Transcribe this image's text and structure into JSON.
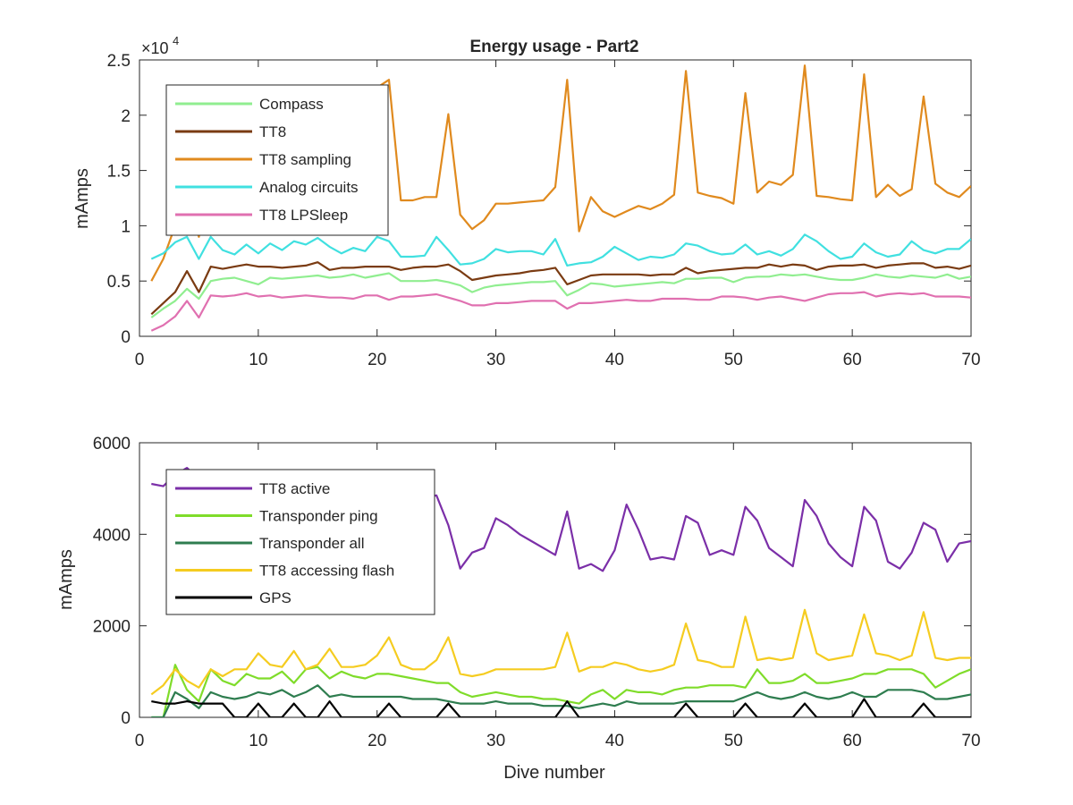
{
  "chart_data": [
    {
      "type": "line",
      "title": "Energy usage - Part2",
      "xlabel": "",
      "ylabel": "mAmps",
      "exponent_base": "×10",
      "exponent_power": "4",
      "xlim": [
        0,
        70
      ],
      "ylim": [
        0,
        25000
      ],
      "xticks": [
        0,
        10,
        20,
        30,
        40,
        50,
        60,
        70
      ],
      "xtick_labels": [
        "0",
        "10",
        "20",
        "30",
        "40",
        "50",
        "60",
        "70"
      ],
      "yticks": [
        0,
        5000,
        10000,
        15000,
        20000,
        25000
      ],
      "ytick_labels": [
        "0",
        "0.5",
        "1",
        "1.5",
        "2",
        "2.5"
      ],
      "grid": false,
      "legend_position": "top-left",
      "series": [
        {
          "name": "Compass",
          "color": "#90ee90",
          "values": [
            1700,
            2500,
            3200,
            4300,
            3400,
            5000,
            5200,
            5300,
            5000,
            4700,
            5300,
            5200,
            5300,
            5400,
            5500,
            5300,
            5400,
            5600,
            5300,
            5500,
            5700,
            5000,
            5000,
            5000,
            5100,
            4900,
            4600,
            4000,
            4400,
            4600,
            4700,
            4800,
            4900,
            4900,
            5000,
            3700,
            4200,
            4800,
            4700,
            4500,
            4600,
            4700,
            4800,
            4900,
            4800,
            5200,
            5200,
            5300,
            5300,
            4900,
            5300,
            5400,
            5400,
            5600,
            5500,
            5600,
            5400,
            5200,
            5100,
            5100,
            5300,
            5600,
            5400,
            5300,
            5500,
            5400,
            5300,
            5600,
            5200,
            5400
          ]
        },
        {
          "name": "TT8",
          "color": "#7a3b12",
          "values": [
            2000,
            3000,
            4000,
            5900,
            4000,
            6300,
            6100,
            6300,
            6500,
            6300,
            6300,
            6200,
            6300,
            6400,
            6700,
            6000,
            6200,
            6200,
            6300,
            6300,
            6300,
            6000,
            6200,
            6300,
            6300,
            6500,
            5900,
            5100,
            5300,
            5500,
            5600,
            5700,
            5900,
            6000,
            6200,
            4700,
            5100,
            5500,
            5600,
            5600,
            5600,
            5600,
            5500,
            5600,
            5600,
            6200,
            5700,
            5900,
            6000,
            6100,
            6200,
            6200,
            6500,
            6300,
            6500,
            6400,
            6000,
            6300,
            6400,
            6400,
            6500,
            6200,
            6400,
            6500,
            6600,
            6600,
            6200,
            6300,
            6100,
            6400
          ]
        },
        {
          "name": "TT8 sampling",
          "color": "#e08a1e",
          "values": [
            5000,
            7000,
            10000,
            12500,
            9000,
            13000,
            14000,
            16000,
            17000,
            18000,
            18000,
            18500,
            19000,
            19500,
            20000,
            20500,
            21000,
            21500,
            22000,
            22500,
            23200,
            12300,
            12300,
            12600,
            12600,
            20100,
            11000,
            9700,
            10500,
            12000,
            12000,
            12100,
            12200,
            12300,
            13500,
            23200,
            9500,
            12600,
            11300,
            10800,
            11300,
            11800,
            11500,
            12000,
            12800,
            24000,
            13000,
            12700,
            12500,
            12000,
            22000,
            13000,
            14000,
            13700,
            14600,
            24500,
            12700,
            12600,
            12400,
            12300,
            23700,
            12600,
            13700,
            12700,
            13300,
            21700,
            13800,
            13000,
            12600,
            13600
          ]
        },
        {
          "name": "Analog circuits",
          "color": "#40e0e0",
          "values": [
            7000,
            7500,
            8500,
            9000,
            7000,
            9000,
            7800,
            7400,
            8300,
            7500,
            8400,
            7800,
            8600,
            8300,
            8900,
            8100,
            7500,
            8000,
            7700,
            9000,
            8600,
            7200,
            7200,
            7300,
            9000,
            7800,
            6500,
            6600,
            7000,
            7900,
            7600,
            7700,
            7700,
            7400,
            8800,
            6400,
            6600,
            6700,
            7200,
            8100,
            7500,
            6900,
            7200,
            7100,
            7400,
            8400,
            8200,
            7700,
            7400,
            7500,
            8300,
            7400,
            7700,
            7300,
            7900,
            9200,
            8600,
            7700,
            7000,
            7200,
            8400,
            7600,
            7200,
            7400,
            8600,
            7800,
            7500,
            7900,
            7900,
            8800
          ]
        },
        {
          "name": "TT8 LPSleep",
          "color": "#e070b0",
          "values": [
            500,
            1000,
            1800,
            3200,
            1700,
            3700,
            3600,
            3700,
            3900,
            3600,
            3700,
            3500,
            3600,
            3700,
            3600,
            3500,
            3500,
            3400,
            3700,
            3700,
            3300,
            3600,
            3600,
            3700,
            3800,
            3500,
            3200,
            2800,
            2800,
            3000,
            3000,
            3100,
            3200,
            3200,
            3200,
            2500,
            3000,
            3000,
            3100,
            3200,
            3300,
            3200,
            3200,
            3400,
            3400,
            3400,
            3300,
            3300,
            3600,
            3600,
            3500,
            3300,
            3500,
            3600,
            3400,
            3200,
            3500,
            3800,
            3900,
            3900,
            4000,
            3600,
            3800,
            3900,
            3800,
            3900,
            3600,
            3600,
            3600,
            3500
          ]
        }
      ],
      "x": [
        1,
        2,
        3,
        4,
        5,
        6,
        7,
        8,
        9,
        10,
        11,
        12,
        13,
        14,
        15,
        16,
        17,
        18,
        19,
        20,
        21,
        22,
        23,
        24,
        25,
        26,
        27,
        28,
        29,
        30,
        31,
        32,
        33,
        34,
        35,
        36,
        37,
        38,
        39,
        40,
        41,
        42,
        43,
        44,
        45,
        46,
        47,
        48,
        49,
        50,
        51,
        52,
        53,
        54,
        55,
        56,
        57,
        58,
        59,
        60,
        61,
        62,
        63,
        64,
        65,
        66,
        67,
        68,
        69,
        70
      ]
    },
    {
      "type": "line",
      "title": "",
      "xlabel": "Dive number",
      "ylabel": "mAmps",
      "xlim": [
        0,
        70
      ],
      "ylim": [
        0,
        6000
      ],
      "xticks": [
        0,
        10,
        20,
        30,
        40,
        50,
        60,
        70
      ],
      "xtick_labels": [
        "0",
        "10",
        "20",
        "30",
        "40",
        "50",
        "60",
        "70"
      ],
      "yticks": [
        0,
        2000,
        4000,
        6000
      ],
      "ytick_labels": [
        "0",
        "2000",
        "4000",
        "6000"
      ],
      "grid": false,
      "legend_position": "top-left",
      "series": [
        {
          "name": "TT8 active",
          "color": "#7b2fa8",
          "values": [
            5100,
            5050,
            5300,
            5450,
            5200,
            5100,
            5050,
            5000,
            5000,
            4900,
            4950,
            4900,
            4850,
            4800,
            4900,
            4800,
            4900,
            4800,
            4850,
            4900,
            4850,
            4800,
            4850,
            4800,
            4850,
            4200,
            3250,
            3600,
            3700,
            4350,
            4200,
            4000,
            3850,
            3700,
            3550,
            4500,
            3250,
            3350,
            3200,
            3650,
            4650,
            4100,
            3450,
            3500,
            3450,
            4400,
            4250,
            3550,
            3650,
            3550,
            4600,
            4300,
            3700,
            3500,
            3300,
            4750,
            4400,
            3800,
            3500,
            3300,
            4600,
            4300,
            3400,
            3250,
            3600,
            4250,
            4100,
            3400,
            3800,
            3850
          ]
        },
        {
          "name": "Transponder ping",
          "color": "#7fdc2a",
          "values": [
            0,
            0,
            1150,
            600,
            350,
            1050,
            800,
            700,
            950,
            850,
            850,
            1000,
            750,
            1050,
            1100,
            850,
            1000,
            900,
            850,
            950,
            950,
            900,
            850,
            800,
            750,
            750,
            550,
            450,
            500,
            550,
            500,
            450,
            450,
            400,
            400,
            350,
            300,
            500,
            600,
            400,
            600,
            550,
            550,
            500,
            600,
            650,
            650,
            700,
            700,
            700,
            650,
            1050,
            750,
            750,
            800,
            950,
            750,
            750,
            800,
            850,
            950,
            950,
            1050,
            1050,
            1050,
            950,
            650,
            800,
            950,
            1050
          ]
        },
        {
          "name": "Transponder all",
          "color": "#2e7d4f",
          "values": [
            0,
            0,
            550,
            400,
            200,
            550,
            450,
            400,
            450,
            550,
            500,
            600,
            450,
            550,
            700,
            450,
            500,
            450,
            450,
            450,
            450,
            450,
            400,
            400,
            400,
            350,
            300,
            300,
            300,
            350,
            300,
            300,
            300,
            250,
            250,
            250,
            200,
            250,
            300,
            250,
            350,
            300,
            300,
            300,
            300,
            350,
            350,
            350,
            350,
            350,
            450,
            550,
            450,
            400,
            450,
            550,
            450,
            400,
            450,
            550,
            450,
            450,
            600,
            600,
            600,
            550,
            400,
            400,
            450,
            500
          ]
        },
        {
          "name": "TT8 accessing flash",
          "color": "#f5cc20",
          "values": [
            500,
            700,
            1050,
            800,
            650,
            1050,
            900,
            1050,
            1050,
            1400,
            1150,
            1100,
            1450,
            1050,
            1150,
            1500,
            1100,
            1100,
            1150,
            1350,
            1750,
            1150,
            1050,
            1050,
            1250,
            1750,
            950,
            900,
            950,
            1050,
            1050,
            1050,
            1050,
            1050,
            1100,
            1850,
            1000,
            1100,
            1100,
            1200,
            1150,
            1050,
            1000,
            1050,
            1150,
            2050,
            1250,
            1200,
            1100,
            1100,
            2200,
            1250,
            1300,
            1250,
            1300,
            2350,
            1400,
            1250,
            1300,
            1350,
            2250,
            1400,
            1350,
            1250,
            1350,
            2300,
            1300,
            1250,
            1300,
            1300
          ]
        },
        {
          "name": "GPS",
          "color": "#000000",
          "values": [
            350,
            300,
            300,
            350,
            300,
            300,
            300,
            0,
            0,
            300,
            0,
            0,
            300,
            0,
            0,
            350,
            0,
            0,
            0,
            0,
            300,
            0,
            0,
            0,
            0,
            300,
            0,
            0,
            0,
            0,
            0,
            0,
            0,
            0,
            0,
            350,
            0,
            0,
            0,
            0,
            0,
            0,
            0,
            0,
            0,
            300,
            0,
            0,
            0,
            0,
            300,
            0,
            0,
            0,
            0,
            300,
            0,
            0,
            0,
            0,
            400,
            0,
            0,
            0,
            0,
            300,
            0,
            0,
            0,
            0
          ]
        }
      ],
      "x": [
        1,
        2,
        3,
        4,
        5,
        6,
        7,
        8,
        9,
        10,
        11,
        12,
        13,
        14,
        15,
        16,
        17,
        18,
        19,
        20,
        21,
        22,
        23,
        24,
        25,
        26,
        27,
        28,
        29,
        30,
        31,
        32,
        33,
        34,
        35,
        36,
        37,
        38,
        39,
        40,
        41,
        42,
        43,
        44,
        45,
        46,
        47,
        48,
        49,
        50,
        51,
        52,
        53,
        54,
        55,
        56,
        57,
        58,
        59,
        60,
        61,
        62,
        63,
        64,
        65,
        66,
        67,
        68,
        69,
        70
      ]
    }
  ]
}
